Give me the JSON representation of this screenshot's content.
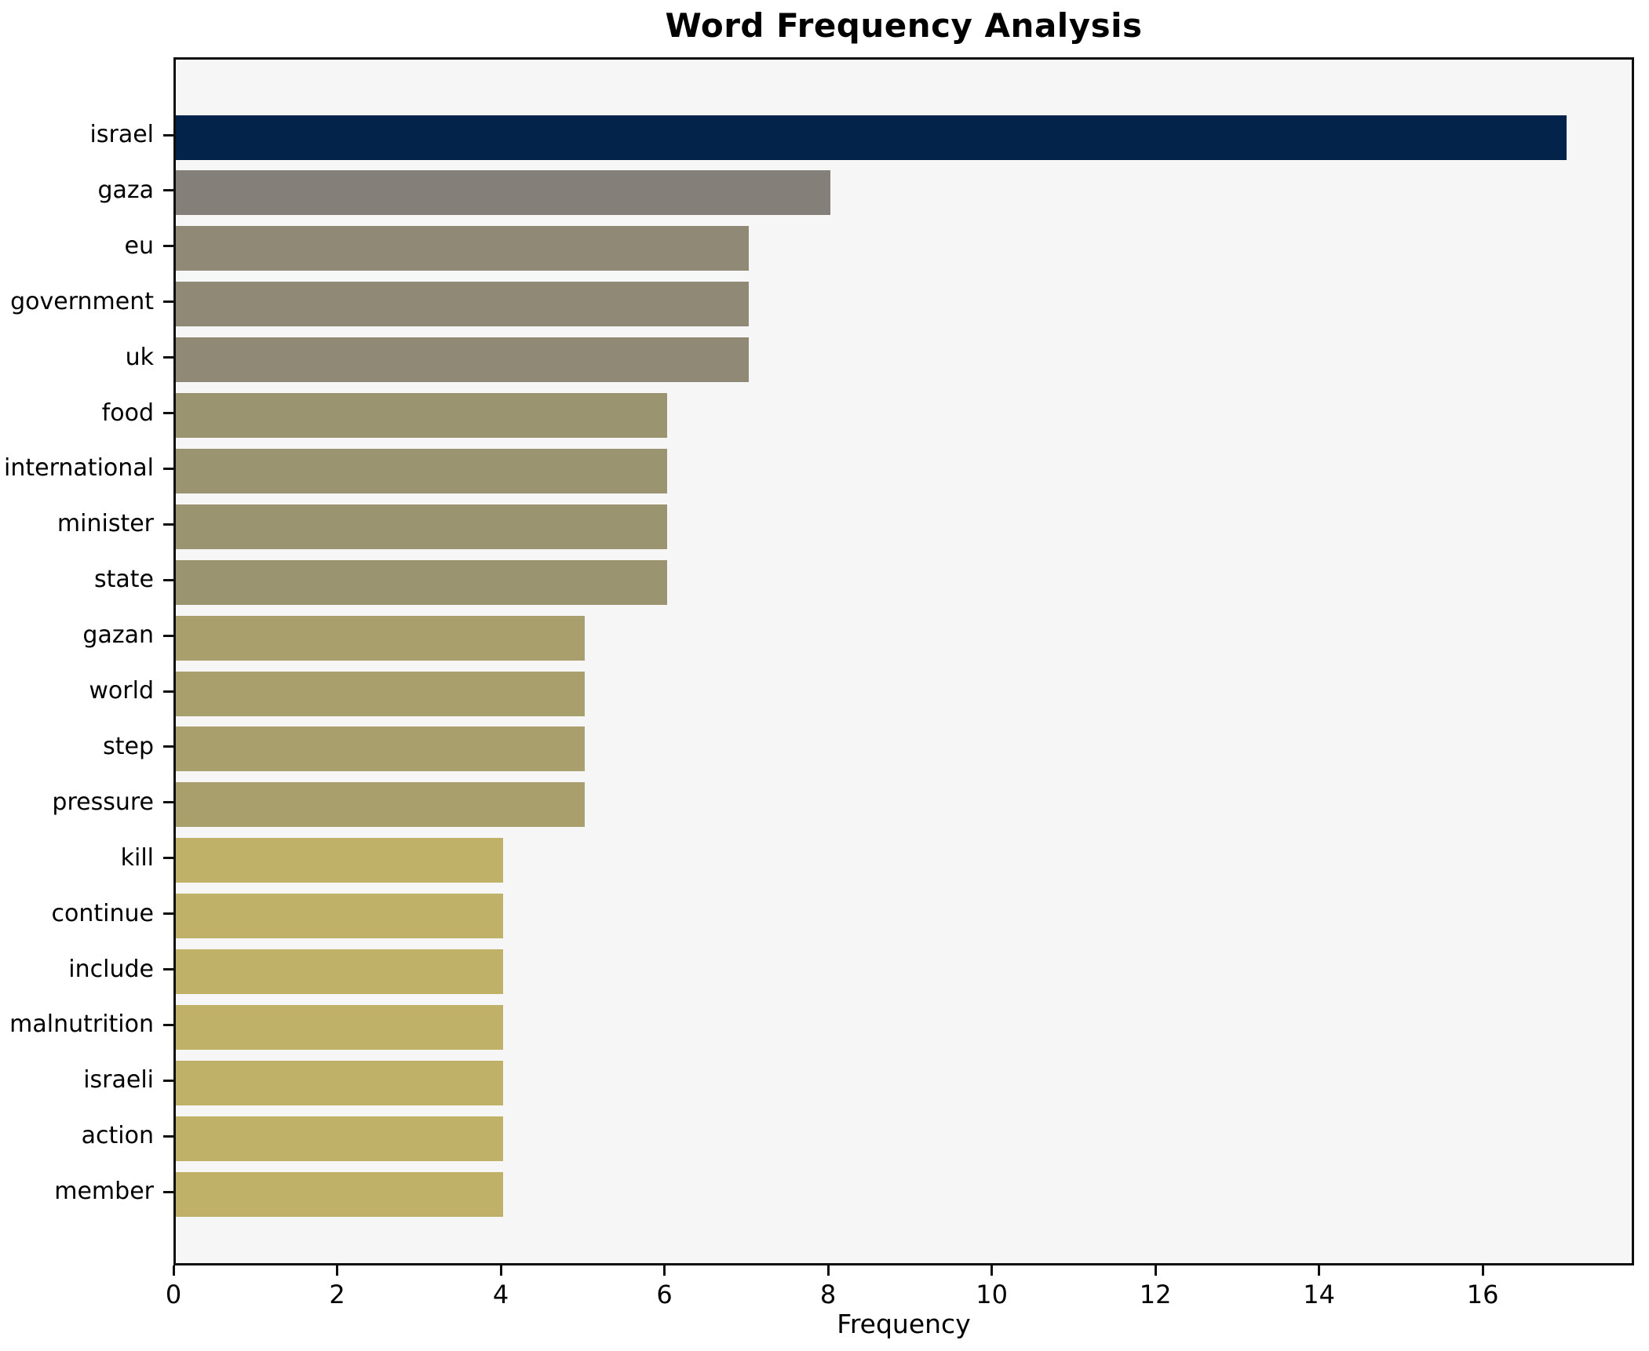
{
  "title": "Word Frequency Analysis",
  "chart_data": {
    "type": "bar",
    "orientation": "horizontal",
    "title": "Word Frequency Analysis",
    "xlabel": "Frequency",
    "ylabel": "",
    "categories": [
      "israel",
      "gaza",
      "eu",
      "government",
      "uk",
      "food",
      "international",
      "minister",
      "state",
      "gazan",
      "world",
      "step",
      "pressure",
      "kill",
      "continue",
      "include",
      "malnutrition",
      "israeli",
      "action",
      "member"
    ],
    "values": [
      17,
      8,
      7,
      7,
      7,
      6,
      6,
      6,
      6,
      5,
      5,
      5,
      5,
      4,
      4,
      4,
      4,
      4,
      4,
      4
    ],
    "bar_colors": [
      "#03234b",
      "#847f78",
      "#8f8976",
      "#8f8976",
      "#8f8976",
      "#9b9471",
      "#9b9471",
      "#9b9471",
      "#9b9471",
      "#a89f6d",
      "#a89f6d",
      "#a89f6d",
      "#a89f6d",
      "#c0b168",
      "#c0b168",
      "#c0b168",
      "#c0b168",
      "#c0b168",
      "#c0b168",
      "#c0b168"
    ],
    "xlim": [
      0,
      17.85
    ],
    "x_ticks": [
      0,
      2,
      4,
      6,
      8,
      10,
      12,
      14,
      16
    ],
    "grid": false,
    "legend": null,
    "plot_background": "#f6f6f7",
    "figure_background": "#ffffff",
    "spine_color": "#0e0e0e"
  }
}
